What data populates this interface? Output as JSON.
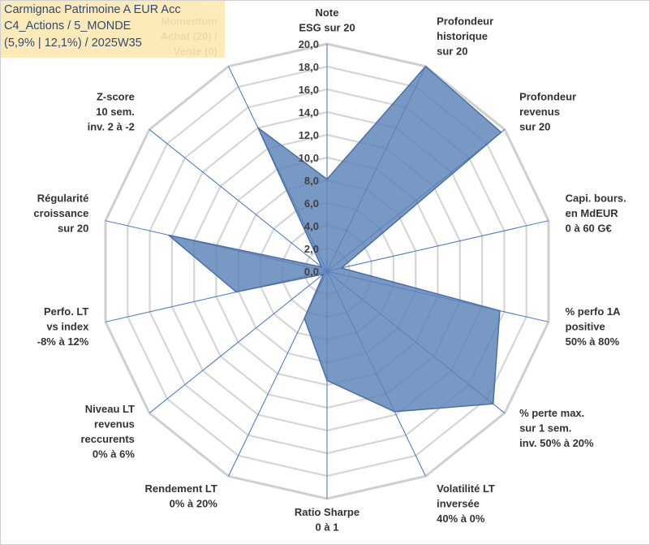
{
  "title_box": {
    "line1": "Carmignac Patrimoine A EUR Acc",
    "line2": "C4_Actions / 5_MONDE",
    "line3": "(5,9% | 12,1%) / 2025W35"
  },
  "chart_data": {
    "type": "radar",
    "rmin": 0,
    "rmax": 20,
    "tick_step": 2,
    "tick_labels": [
      "0,0",
      "2,0",
      "4,0",
      "6,0",
      "8,0",
      "10,0",
      "12,0",
      "14,0",
      "16,0",
      "18,0",
      "20,0"
    ],
    "grid": true,
    "fill_color": "#5b82b8",
    "line_color": "#4a6fa5",
    "axes": [
      {
        "label": [
          "Note",
          "ESG sur 20"
        ],
        "value": 8.1
      },
      {
        "label": [
          "Profondeur",
          "historique",
          "sur 20"
        ],
        "value": 20.0
      },
      {
        "label": [
          "Profondeur",
          "revenus",
          "sur 20"
        ],
        "value": 19.6
      },
      {
        "label": [
          "Capi. bours.",
          "en MdEUR",
          "0 à 60 G€"
        ],
        "value": 1.3
      },
      {
        "label": [
          "% perfo 1A",
          "positive",
          "50% à 80%"
        ],
        "value": 15.6
      },
      {
        "label": [
          "% perte max.",
          "sur 1 sem.",
          "inv. 50% à 20%"
        ],
        "value": 18.7
      },
      {
        "label": [
          "Volatilité LT",
          "inversée",
          "40% à 0%"
        ],
        "value": 13.7
      },
      {
        "label": [
          "Ratio Sharpe",
          "0 à 1"
        ],
        "value": 9.6
      },
      {
        "label": [
          "Rendement LT",
          "0% à 20%"
        ],
        "value": 4.6
      },
      {
        "label": [
          "Niveau LT",
          "revenus",
          "reccurents",
          "0% à 6%"
        ],
        "value": 0.4
      },
      {
        "label": [
          "Perfo. LT",
          "vs index",
          "-8% à 12%"
        ],
        "value": 8.2
      },
      {
        "label": [
          "Régularité",
          "croissance",
          "sur 20"
        ],
        "value": 14.3
      },
      {
        "label": [
          "Z-score",
          "10 sem.",
          "inv. 2 à -2"
        ],
        "value": 0.6
      },
      {
        "label": [
          "Momentum",
          "Achat (20) /",
          "Vente (0)"
        ],
        "value": 14.0
      }
    ]
  }
}
